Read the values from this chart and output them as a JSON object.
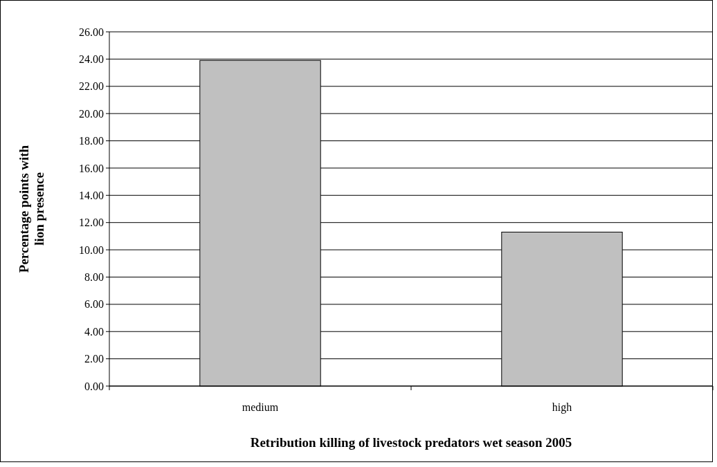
{
  "chart_data": {
    "type": "bar",
    "xlabel": "Retribution killing of livestock predators wet season 2005",
    "ylabel": "Percentage points with lion presence",
    "categories": [
      "medium",
      "high"
    ],
    "values": [
      23.9,
      11.3
    ],
    "color": "#c0c0c0",
    "ylim": [
      0,
      26
    ],
    "yticks": [
      {
        "value": 0,
        "label": "0.00"
      },
      {
        "value": 2,
        "label": "2.00"
      },
      {
        "value": 4,
        "label": "4.00"
      },
      {
        "value": 6,
        "label": "6.00"
      },
      {
        "value": 8,
        "label": "8.00"
      },
      {
        "value": 10,
        "label": "10.00"
      },
      {
        "value": 12,
        "label": "12.00"
      },
      {
        "value": 14,
        "label": "14.00"
      },
      {
        "value": 16,
        "label": "16.00"
      },
      {
        "value": 18,
        "label": "18.00"
      },
      {
        "value": 20,
        "label": "20.00"
      },
      {
        "value": 22,
        "label": "22.00"
      },
      {
        "value": 24,
        "label": "24.00"
      },
      {
        "value": 26,
        "label": "26.00"
      }
    ],
    "grid": "y"
  }
}
